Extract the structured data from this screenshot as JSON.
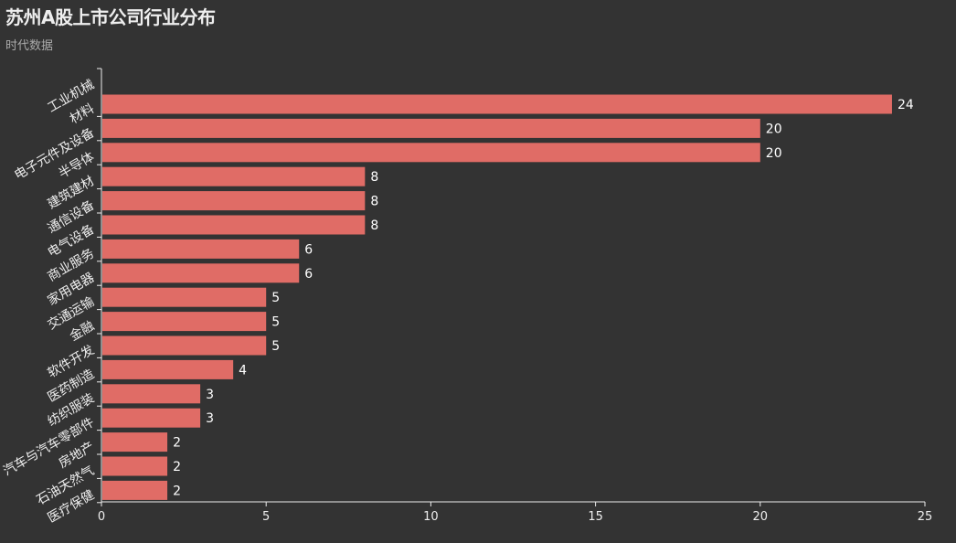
{
  "title": "苏州A股上市公司行业分布",
  "subtitle": "时代数据",
  "colors": {
    "background": "#333333",
    "bar": "#e06c66",
    "axis": "#eeeeee",
    "text": "#eeeeee"
  },
  "chart_data": {
    "type": "bar",
    "orientation": "horizontal",
    "title": "苏州A股上市公司行业分布",
    "subtitle": "时代数据",
    "categories": [
      "工业机械",
      "材料",
      "电子元件及设备",
      "半导体",
      "建筑建材",
      "通信设备",
      "电气设备",
      "商业服务",
      "家用电器",
      "交通运输",
      "金融",
      "软件开发",
      "医药制造",
      "纺织服装",
      "汽车与汽车零部件",
      "房地产",
      "石油天然气",
      "医疗保健"
    ],
    "values": [
      24,
      20,
      20,
      8,
      8,
      8,
      6,
      6,
      5,
      5,
      5,
      4,
      3,
      3,
      2,
      2,
      2,
      null
    ],
    "x_ticks": [
      0,
      5,
      10,
      15,
      20,
      25
    ],
    "xlim": [
      0,
      25
    ],
    "grid": false,
    "legend": "none"
  }
}
